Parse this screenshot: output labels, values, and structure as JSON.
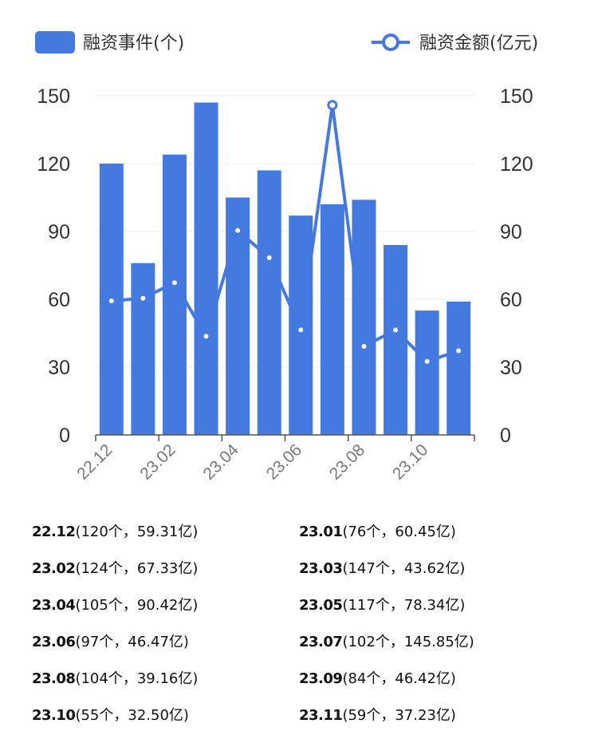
{
  "chart_data": {
    "type": "bar",
    "categories": [
      "22.12",
      "23.01",
      "23.02",
      "23.03",
      "23.04",
      "23.05",
      "23.06",
      "23.07",
      "23.08",
      "23.09",
      "23.10",
      "23.11"
    ],
    "x_tick_labels": [
      "22.12",
      "23.02",
      "23.04",
      "23.06",
      "23.08",
      "23.10"
    ],
    "series": [
      {
        "name": "融资事件(个)",
        "type": "bar",
        "axis": "left",
        "values": [
          120,
          76,
          124,
          147,
          105,
          117,
          97,
          102,
          104,
          84,
          55,
          59
        ],
        "color": "#4479e0"
      },
      {
        "name": "融资金额(亿元)",
        "type": "line",
        "axis": "right",
        "values": [
          59.31,
          60.45,
          67.33,
          43.62,
          90.42,
          78.34,
          46.47,
          145.85,
          39.16,
          46.42,
          32.5,
          37.23
        ],
        "color": "#4479e0"
      }
    ],
    "ylim_left": [
      0,
      150
    ],
    "ylim_right": [
      0,
      150
    ],
    "yticks": [
      "0",
      "30",
      "60",
      "90",
      "120",
      "150"
    ],
    "grid": true,
    "legend_placement": "top"
  },
  "summary": [
    {
      "month": "22.12",
      "detail": "(120个，59.31亿)"
    },
    {
      "month": "23.01",
      "detail": "(76个，60.45亿)"
    },
    {
      "month": "23.02",
      "detail": "(124个，67.33亿)"
    },
    {
      "month": "23.03",
      "detail": "(147个，43.62亿)"
    },
    {
      "month": "23.04",
      "detail": "(105个，90.42亿)"
    },
    {
      "month": "23.05",
      "detail": "(117个，78.34亿)"
    },
    {
      "month": "23.06",
      "detail": "(97个，46.47亿)"
    },
    {
      "month": "23.07",
      "detail": "(102个，145.85亿)"
    },
    {
      "month": "23.08",
      "detail": "(104个，39.16亿)"
    },
    {
      "month": "23.09",
      "detail": "(84个，46.42亿)"
    },
    {
      "month": "23.10",
      "detail": "(55个，32.50亿)"
    },
    {
      "month": "23.11",
      "detail": "(59个，37.23亿)"
    }
  ]
}
